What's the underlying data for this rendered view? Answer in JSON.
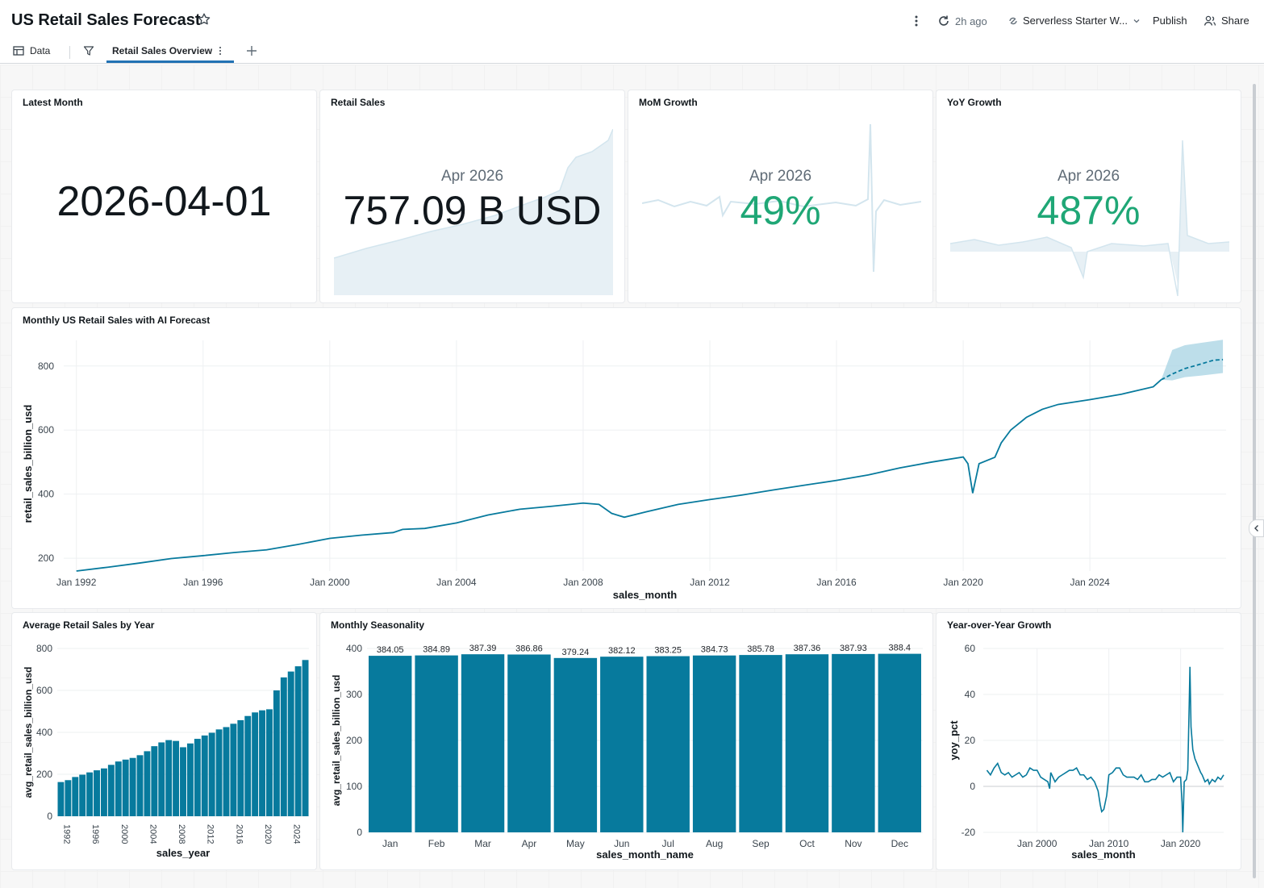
{
  "header": {
    "title": "US Retail Sales Forecast",
    "refresh_label": "2h ago",
    "warehouse_label": "Serverless Starter W...",
    "publish_label": "Publish",
    "share_label": "Share"
  },
  "tabs": {
    "data_label": "Data",
    "page_label": "Retail Sales Overview"
  },
  "colors": {
    "accent": "#2272b4",
    "series": "#077a9d",
    "positive": "#1fa776",
    "band": "#a7d3e3"
  },
  "counters": {
    "latest_month": {
      "title": "Latest Month",
      "value": "2026-04-01"
    },
    "retail_sales": {
      "title": "Retail Sales",
      "period": "Apr 2026",
      "value": "757.09 B USD"
    },
    "mom_growth": {
      "title": "MoM Growth",
      "period": "Apr 2026",
      "value": "49%"
    },
    "yoy_growth": {
      "title": "YoY Growth",
      "period": "Apr 2026",
      "value": "487%"
    }
  },
  "chart_data": [
    {
      "id": "forecast",
      "type": "line",
      "title": "Monthly US Retail Sales with AI Forecast",
      "xlabel": "sales_month",
      "ylabel": "retail_sales_billion_usd",
      "xlim": [
        1991.6,
        2028.3
      ],
      "ylim": [
        160,
        880
      ],
      "yticks": [
        200,
        400,
        600,
        800
      ],
      "xticks": [
        {
          "v": 1992,
          "label": "Jan 1992"
        },
        {
          "v": 1996,
          "label": "Jan 1996"
        },
        {
          "v": 2000,
          "label": "Jan 2000"
        },
        {
          "v": 2004,
          "label": "Jan 2004"
        },
        {
          "v": 2008,
          "label": "Jan 2008"
        },
        {
          "v": 2012,
          "label": "Jan 2012"
        },
        {
          "v": 2016,
          "label": "Jan 2016"
        },
        {
          "v": 2020,
          "label": "Jan 2020"
        },
        {
          "v": 2024,
          "label": "Jan 2024"
        }
      ],
      "actual": [
        [
          1992.0,
          160
        ],
        [
          1993.0,
          172
        ],
        [
          1994.0,
          185
        ],
        [
          1995.0,
          199
        ],
        [
          1996.0,
          208
        ],
        [
          1997.0,
          218
        ],
        [
          1998.0,
          226
        ],
        [
          1999.0,
          243
        ],
        [
          2000.0,
          262
        ],
        [
          2001.0,
          272
        ],
        [
          2002.0,
          280
        ],
        [
          2002.3,
          290
        ],
        [
          2003.0,
          293
        ],
        [
          2004.0,
          310
        ],
        [
          2005.0,
          335
        ],
        [
          2006.0,
          353
        ],
        [
          2007.0,
          362
        ],
        [
          2008.0,
          372
        ],
        [
          2008.5,
          368
        ],
        [
          2008.9,
          340
        ],
        [
          2009.3,
          328
        ],
        [
          2010.0,
          345
        ],
        [
          2011.0,
          368
        ],
        [
          2012.0,
          383
        ],
        [
          2013.0,
          397
        ],
        [
          2014.0,
          413
        ],
        [
          2015.0,
          428
        ],
        [
          2016.0,
          443
        ],
        [
          2017.0,
          460
        ],
        [
          2018.0,
          482
        ],
        [
          2019.0,
          500
        ],
        [
          2020.0,
          516
        ],
        [
          2020.15,
          495
        ],
        [
          2020.3,
          403
        ],
        [
          2020.5,
          495
        ],
        [
          2021.0,
          515
        ],
        [
          2021.2,
          560
        ],
        [
          2021.5,
          600
        ],
        [
          2022.0,
          640
        ],
        [
          2022.5,
          665
        ],
        [
          2023.0,
          680
        ],
        [
          2024.0,
          695
        ],
        [
          2025.0,
          712
        ],
        [
          2026.0,
          735
        ],
        [
          2026.25,
          757
        ]
      ],
      "forecast": [
        [
          2026.25,
          757
        ],
        [
          2026.6,
          775
        ],
        [
          2027.0,
          792
        ],
        [
          2027.5,
          806
        ],
        [
          2027.9,
          818
        ],
        [
          2028.2,
          820
        ]
      ],
      "band_upper": [
        [
          2026.25,
          757
        ],
        [
          2026.6,
          850
        ],
        [
          2027.0,
          865
        ],
        [
          2027.5,
          872
        ],
        [
          2028.2,
          882
        ]
      ],
      "band_lower": [
        [
          2026.25,
          757
        ],
        [
          2026.6,
          755
        ],
        [
          2027.0,
          765
        ],
        [
          2027.5,
          770
        ],
        [
          2028.2,
          778
        ]
      ]
    },
    {
      "id": "by_year",
      "type": "bar",
      "title": "Average Retail Sales by Year",
      "xlabel": "sales_year",
      "ylabel": "avg_retail_sales_billion_usd",
      "ylim": [
        0,
        800
      ],
      "yticks": [
        0,
        200,
        400,
        600,
        800
      ],
      "categories": [
        1992,
        1993,
        1994,
        1995,
        1996,
        1997,
        1998,
        1999,
        2000,
        2001,
        2002,
        2003,
        2004,
        2005,
        2006,
        2007,
        2008,
        2009,
        2010,
        2011,
        2012,
        2013,
        2014,
        2015,
        2016,
        2017,
        2018,
        2019,
        2020,
        2021,
        2022,
        2023,
        2024,
        2025,
        2026
      ],
      "values": [
        163,
        172,
        187,
        198,
        209,
        219,
        228,
        245,
        261,
        270,
        278,
        291,
        310,
        334,
        352,
        363,
        359,
        329,
        347,
        369,
        385,
        398,
        414,
        425,
        441,
        458,
        478,
        495,
        505,
        510,
        600,
        662,
        690,
        715,
        745
      ],
      "xtick_labels": [
        "1992",
        "1996",
        "2000",
        "2004",
        "2008",
        "2012",
        "2016",
        "2020",
        "2024"
      ]
    },
    {
      "id": "seasonality",
      "type": "bar",
      "title": "Monthly Seasonality",
      "xlabel": "sales_month_name",
      "ylabel": "avg_retail_sales_billion_usd",
      "ylim": [
        0,
        400
      ],
      "yticks": [
        0,
        100,
        200,
        300,
        400
      ],
      "categories": [
        "Jan",
        "Feb",
        "Mar",
        "Apr",
        "May",
        "Jun",
        "Jul",
        "Aug",
        "Sep",
        "Oct",
        "Nov",
        "Dec"
      ],
      "values": [
        384.05,
        384.89,
        387.39,
        386.86,
        379.24,
        382.12,
        383.25,
        384.73,
        385.78,
        387.36,
        387.93,
        388.4
      ],
      "labels": [
        "384.05",
        "384.89",
        "387.39",
        "386.86",
        "379.24",
        "382.12",
        "383.25",
        "384.73",
        "385.78",
        "387.36",
        "387.93",
        "388.4"
      ]
    },
    {
      "id": "yoy",
      "type": "line",
      "title": "Year-over-Year Growth",
      "xlabel": "sales_month",
      "ylabel": "yoy_pct",
      "xlim": [
        1992.5,
        2026.0
      ],
      "ylim": [
        -20,
        60
      ],
      "yticks": [
        -20,
        0,
        20,
        40,
        60
      ],
      "xticks": [
        {
          "v": 2000,
          "label": "Jan 2000"
        },
        {
          "v": 2010,
          "label": "Jan 2010"
        },
        {
          "v": 2020,
          "label": "Jan 2020"
        }
      ],
      "values": [
        [
          1993.0,
          7
        ],
        [
          1993.5,
          5
        ],
        [
          1994.0,
          8
        ],
        [
          1994.5,
          10
        ],
        [
          1995.0,
          6
        ],
        [
          1995.5,
          5
        ],
        [
          1996.0,
          6
        ],
        [
          1996.5,
          4
        ],
        [
          1997.0,
          5
        ],
        [
          1997.5,
          6
        ],
        [
          1998.0,
          4
        ],
        [
          1998.5,
          5
        ],
        [
          1999.0,
          8
        ],
        [
          1999.5,
          7
        ],
        [
          2000.0,
          7
        ],
        [
          2000.5,
          4
        ],
        [
          2001.0,
          3
        ],
        [
          2001.5,
          2
        ],
        [
          2001.75,
          -1
        ],
        [
          2001.9,
          6
        ],
        [
          2002.5,
          2
        ],
        [
          2003.0,
          4
        ],
        [
          2003.5,
          5
        ],
        [
          2004.0,
          6
        ],
        [
          2004.5,
          7
        ],
        [
          2005.0,
          7
        ],
        [
          2005.5,
          8
        ],
        [
          2006.0,
          5
        ],
        [
          2006.5,
          5
        ],
        [
          2007.0,
          3
        ],
        [
          2007.5,
          4
        ],
        [
          2008.0,
          2
        ],
        [
          2008.5,
          -2
        ],
        [
          2008.8,
          -8
        ],
        [
          2009.0,
          -11
        ],
        [
          2009.3,
          -10
        ],
        [
          2009.7,
          -4
        ],
        [
          2010.0,
          5
        ],
        [
          2010.5,
          6
        ],
        [
          2011.0,
          8
        ],
        [
          2011.5,
          8
        ],
        [
          2012.0,
          5
        ],
        [
          2012.5,
          4
        ],
        [
          2013.0,
          4
        ],
        [
          2013.5,
          4
        ],
        [
          2014.0,
          3
        ],
        [
          2014.5,
          5
        ],
        [
          2015.0,
          2
        ],
        [
          2015.5,
          2
        ],
        [
          2016.0,
          3
        ],
        [
          2016.5,
          3
        ],
        [
          2017.0,
          5
        ],
        [
          2017.5,
          4
        ],
        [
          2018.0,
          5
        ],
        [
          2018.5,
          6
        ],
        [
          2019.0,
          2
        ],
        [
          2019.5,
          4
        ],
        [
          2020.0,
          4
        ],
        [
          2020.2,
          -7
        ],
        [
          2020.3,
          -20
        ],
        [
          2020.5,
          2
        ],
        [
          2020.8,
          3
        ],
        [
          2021.0,
          7
        ],
        [
          2021.2,
          36
        ],
        [
          2021.3,
          52
        ],
        [
          2021.45,
          26
        ],
        [
          2021.7,
          16
        ],
        [
          2022.0,
          12
        ],
        [
          2022.4,
          9
        ],
        [
          2022.8,
          6
        ],
        [
          2023.0,
          5
        ],
        [
          2023.4,
          2
        ],
        [
          2023.8,
          3
        ],
        [
          2024.0,
          1
        ],
        [
          2024.4,
          3
        ],
        [
          2024.8,
          2
        ],
        [
          2025.2,
          4
        ],
        [
          2025.6,
          3
        ],
        [
          2026.0,
          5
        ]
      ]
    }
  ]
}
